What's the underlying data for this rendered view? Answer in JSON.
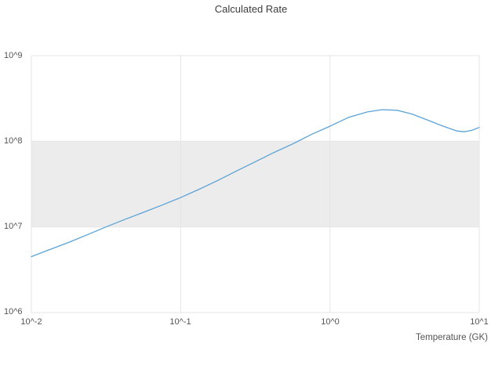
{
  "chart_data": {
    "type": "line",
    "title": "Calculated Rate",
    "xlabel": "Temperature (GK)",
    "ylabel": "",
    "xscale": "log",
    "yscale": "log",
    "xlim": [
      0.01,
      10
    ],
    "ylim": [
      1000000,
      1000000000
    ],
    "grid": true,
    "legend": "none",
    "x_ticks": [
      {
        "value": 0.01,
        "label": "10^-2"
      },
      {
        "value": 0.1,
        "label": "10^-1"
      },
      {
        "value": 1,
        "label": "10^0"
      },
      {
        "value": 10,
        "label": "10^1"
      }
    ],
    "y_ticks": [
      {
        "value": 1000000,
        "label": "10^6"
      },
      {
        "value": 10000000,
        "label": "10^7"
      },
      {
        "value": 100000000,
        "label": "10^8"
      },
      {
        "value": 1000000000,
        "label": "10^9"
      }
    ],
    "band": {
      "y_from": 10000000,
      "y_to": 100000000,
      "color": "#ececec"
    },
    "colors": {
      "line": "#5ba3d6",
      "grid": "#e5e5e5",
      "band": "#ececec",
      "tick_text": "#555555",
      "title_text": "#3c3c3c"
    },
    "series": [
      {
        "name": "calculated-rate",
        "x": [
          0.01,
          0.0133,
          0.0178,
          0.0237,
          0.0316,
          0.0422,
          0.0562,
          0.075,
          0.1,
          0.133,
          0.178,
          0.237,
          0.316,
          0.422,
          0.562,
          0.75,
          1.0,
          1.33,
          1.78,
          2.24,
          2.82,
          3.55,
          4.47,
          5.62,
          7.08,
          7.94,
          8.91,
          10.0
        ],
        "y": [
          4500000,
          5450000,
          6600000,
          8100000,
          10000000,
          12200000,
          14800000,
          18000000,
          22000000,
          27500000,
          35000000,
          45000000,
          57500000,
          74000000,
          93000000,
          120000000,
          150000000,
          190000000,
          220000000,
          234000000,
          230000000,
          208000000,
          178000000,
          152000000,
          132000000,
          129000000,
          134000000,
          145000000
        ]
      }
    ]
  }
}
